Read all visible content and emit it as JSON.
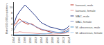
{
  "chart_data": {
    "type": "line",
    "x": [
      1994,
      1995,
      1996,
      1997,
      1998,
      1999,
      2000,
      2001,
      2002,
      2003,
      2004,
      2005,
      2006,
      2007,
      2008,
      2009,
      2010,
      2011,
      2012,
      2013,
      2014
    ],
    "series": [
      {
        "name": "kansasii, male",
        "color": "#c0392b",
        "values": [
          3.5,
          4.5,
          6.0,
          5.0,
          4.5,
          4.0,
          4.2,
          3.8,
          3.0,
          2.5,
          2.0,
          1.8,
          1.5,
          1.2,
          1.0,
          0.9,
          0.8,
          1.0,
          1.3,
          1.8,
          2.5
        ]
      },
      {
        "name": "kansasii, female",
        "color": "#e8a0a0",
        "values": [
          1.0,
          0.9,
          1.3,
          1.1,
          1.0,
          0.9,
          0.9,
          0.8,
          0.7,
          0.6,
          0.6,
          0.5,
          0.5,
          0.4,
          0.4,
          0.5,
          0.5,
          0.6,
          0.7,
          0.9,
          1.1
        ]
      },
      {
        "name": "MAC, male",
        "color": "#2c3e8c",
        "values": [
          4.0,
          7.0,
          8.5,
          9.8,
          11.0,
          10.0,
          9.0,
          8.0,
          6.8,
          5.5,
          4.5,
          4.0,
          3.5,
          3.0,
          2.8,
          2.5,
          2.2,
          2.0,
          2.0,
          2.5,
          3.5
        ]
      },
      {
        "name": "MAC, female",
        "color": "#8898cc",
        "values": [
          1.8,
          3.8,
          4.5,
          5.2,
          5.0,
          4.5,
          4.0,
          3.5,
          3.0,
          2.5,
          2.2,
          2.0,
          1.8,
          1.5,
          1.4,
          1.2,
          1.1,
          1.0,
          1.0,
          1.2,
          1.8
        ]
      },
      {
        "name": "M. abscessus, male",
        "color": "#5599cc",
        "values": [
          0.2,
          0.2,
          0.3,
          0.2,
          0.2,
          0.2,
          0.3,
          0.2,
          0.3,
          0.4,
          0.4,
          0.5,
          0.6,
          0.7,
          0.9,
          1.0,
          0.9,
          0.8,
          1.0,
          1.3,
          1.6
        ]
      },
      {
        "name": "M. abscessus, female",
        "color": "#aaccee",
        "values": [
          0.1,
          0.1,
          0.1,
          0.1,
          0.2,
          0.2,
          0.2,
          0.2,
          0.2,
          0.3,
          0.4,
          0.5,
          0.6,
          0.7,
          0.8,
          0.9,
          1.0,
          1.2,
          1.5,
          1.8,
          2.2
        ]
      }
    ],
    "xlim": [
      1994,
      2014
    ],
    "xticks": [
      1994,
      1996,
      1998,
      2000,
      2002,
      2004,
      2006,
      2008,
      2010,
      2012,
      2014
    ],
    "ylabel": "Rate/100,000 population",
    "ylim": [
      0,
      12
    ],
    "yticks": [
      0,
      2,
      4,
      6,
      8,
      10
    ],
    "legend": "upper right",
    "grid": false
  }
}
